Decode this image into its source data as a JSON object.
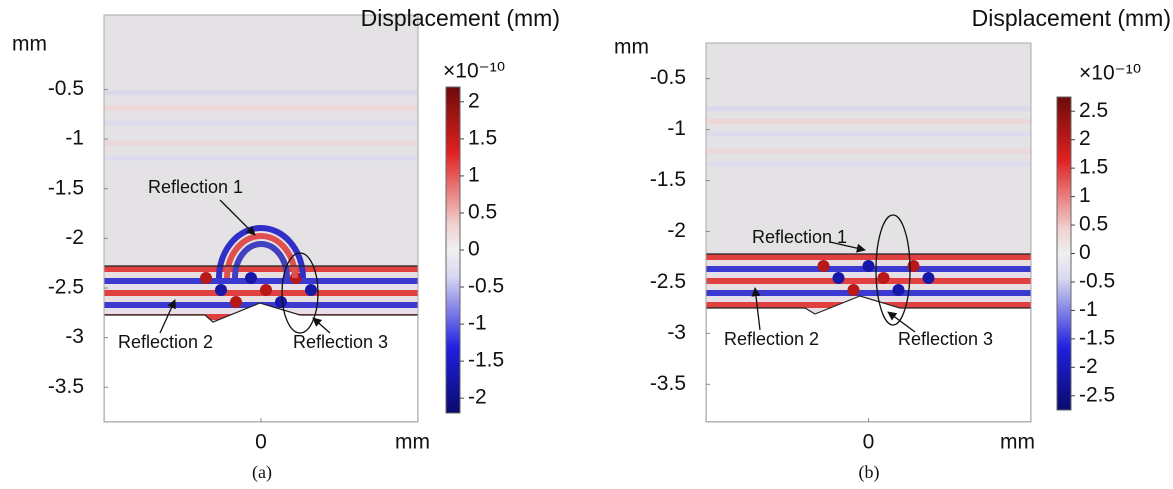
{
  "chart_data": [
    {
      "type": "field",
      "title": "Displacement (mm)",
      "ylabel": "mm",
      "xlabel": "mm",
      "xlim": [
        -0.8,
        0.8
      ],
      "xticks": [
        0
      ],
      "ylim": [
        -3.85,
        0.25
      ],
      "yticks": [
        -0.5,
        -1,
        -1.5,
        -2,
        -2.5,
        -3,
        -3.5
      ],
      "colorbar": {
        "exponent": "×10⁻¹⁰",
        "clim": [
          -2.2,
          2.2
        ],
        "ticks": [
          2,
          1.5,
          1,
          0.5,
          0,
          -0.5,
          -1,
          -1.5,
          -2
        ]
      },
      "annotations": [
        "Reflection 1",
        "Reflection 2",
        "Reflection 3"
      ],
      "caption": "(a)"
    },
    {
      "type": "field",
      "title": "Displacement (mm)",
      "ylabel": "mm",
      "xlabel": "mm",
      "xlim": [
        -0.8,
        0.8
      ],
      "xticks": [
        0
      ],
      "ylim": [
        -3.87,
        -0.15
      ],
      "yticks": [
        -0.5,
        -1,
        -1.5,
        -2,
        -2.5,
        -3,
        -3.5
      ],
      "colorbar": {
        "exponent": "×10⁻¹⁰",
        "clim": [
          -2.75,
          2.75
        ],
        "ticks": [
          2.5,
          2,
          1.5,
          1,
          0.5,
          0,
          -0.5,
          -1,
          -1.5,
          -2,
          -2.5
        ]
      },
      "annotations": [
        "Reflection 1",
        "Reflection 2",
        "Reflection 3"
      ],
      "caption": "(b)"
    }
  ]
}
